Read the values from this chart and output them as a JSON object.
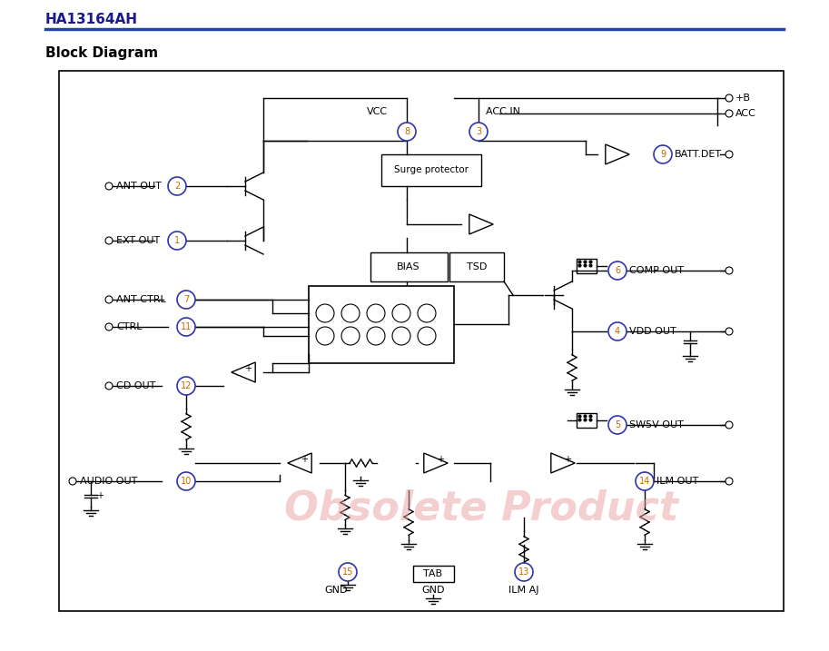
{
  "title": "HA13164AH",
  "subtitle": "Block Diagram",
  "title_color": "#1a1a8c",
  "line_color": "#3333aa",
  "bg_color": "#ffffff",
  "box_color": "#000000",
  "pin_color": "#cc6600",
  "watermark": "Obsolete Product",
  "watermark_color": "#e8a0a0"
}
